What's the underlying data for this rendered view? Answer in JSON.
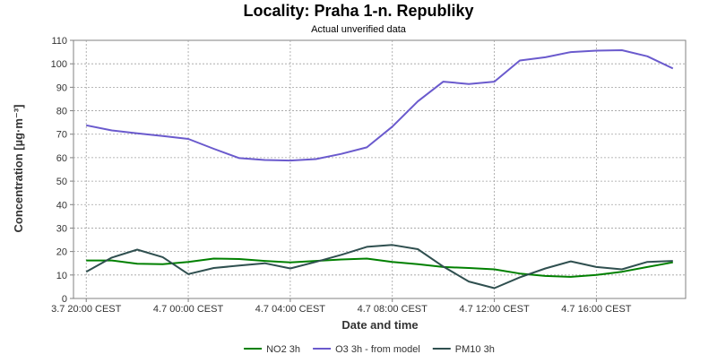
{
  "chart_data": {
    "type": "line",
    "title": "Locality: Praha 1-n. Republiky",
    "subtitle": "Actual unverified data",
    "xlabel": "Date and time",
    "ylabel": "Concentration [µg·m⁻³]",
    "ylim": [
      0,
      110
    ],
    "yticks": [
      0,
      10,
      20,
      30,
      40,
      50,
      60,
      70,
      80,
      90,
      100,
      110
    ],
    "x_hours": [
      0,
      1,
      2,
      3,
      4,
      5,
      6,
      7,
      8,
      9,
      10,
      11,
      12,
      13,
      14,
      15,
      16,
      17,
      18,
      19,
      20,
      21,
      22,
      23
    ],
    "xlim_hours": [
      -0.5,
      23.5
    ],
    "xticks": [
      {
        "hour": 0,
        "label": "3.7 20:00 CEST"
      },
      {
        "hour": 4,
        "label": "4.7 00:00 CEST"
      },
      {
        "hour": 8,
        "label": "4.7 04:00 CEST"
      },
      {
        "hour": 12,
        "label": "4.7 08:00 CEST"
      },
      {
        "hour": 16,
        "label": "4.7 12:00 CEST"
      },
      {
        "hour": 20,
        "label": "4.7 16:00 CEST"
      }
    ],
    "grid": true,
    "legend_position": "bottom-center",
    "series": [
      {
        "name": "NO2 3h",
        "color": "#008000",
        "values": [
          16.2,
          16.2,
          14.8,
          14.6,
          15.6,
          17.0,
          16.8,
          16.0,
          15.4,
          16.0,
          16.6,
          17.0,
          15.6,
          14.6,
          13.4,
          13.0,
          12.4,
          10.6,
          9.6,
          9.2,
          10.0,
          11.4,
          13.4,
          15.4
        ]
      },
      {
        "name": "O3 3h - from model",
        "color": "#6a5acd",
        "values": [
          73.8,
          71.6,
          70.4,
          69.2,
          68.0,
          63.8,
          59.8,
          59.0,
          58.8,
          59.4,
          61.6,
          64.4,
          73.2,
          84.0,
          92.4,
          91.4,
          92.4,
          101.4,
          102.8,
          105.0,
          105.6,
          105.8,
          103.2,
          98.0
        ]
      },
      {
        "name": "PM10 3h",
        "color": "#2f4f4f",
        "values": [
          11.4,
          17.4,
          20.8,
          17.6,
          10.4,
          13.0,
          14.0,
          15.0,
          12.8,
          15.6,
          18.6,
          22.0,
          22.8,
          21.0,
          13.6,
          7.2,
          4.4,
          9.0,
          12.8,
          15.8,
          13.4,
          12.4,
          15.6,
          16.0
        ]
      }
    ]
  }
}
